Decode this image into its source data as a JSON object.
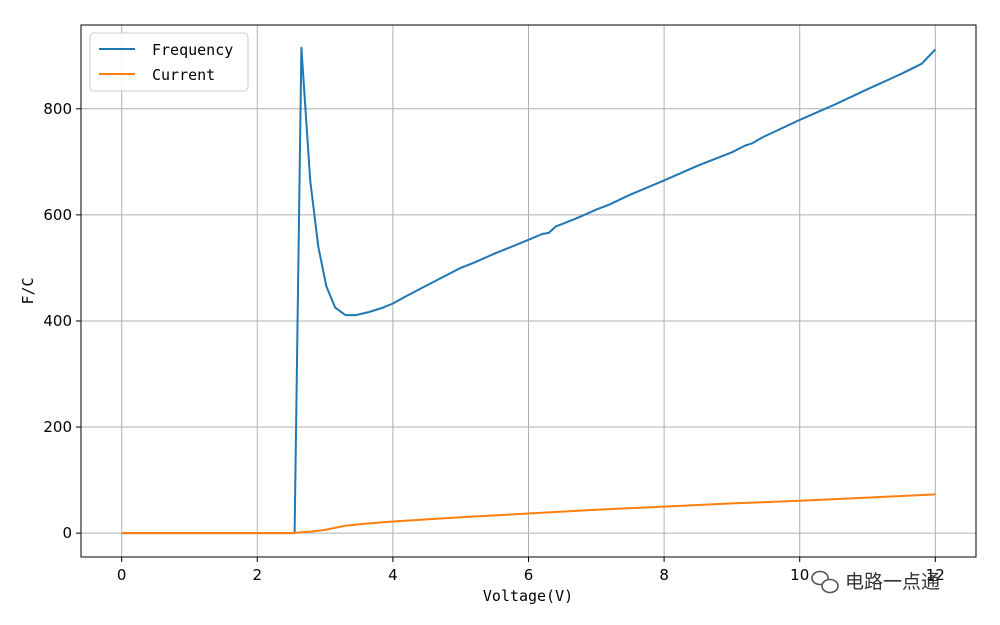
{
  "chart_data": {
    "type": "line",
    "title": "",
    "xlabel": "Voltage(V)",
    "ylabel": "F/C",
    "xlim": [
      -0.6,
      12.6
    ],
    "ylim": [
      -45,
      958
    ],
    "xticks": [
      0,
      2,
      4,
      6,
      8,
      10,
      12
    ],
    "yticks": [
      0,
      200,
      400,
      600,
      800
    ],
    "grid": true,
    "legend_position": "top-left",
    "series": [
      {
        "name": "Frequency",
        "color": "#1f77b4",
        "points": [
          [
            0,
            0
          ],
          [
            2.4,
            0
          ],
          [
            2.55,
            0
          ],
          [
            2.65,
            915
          ],
          [
            2.78,
            665
          ],
          [
            2.9,
            540
          ],
          [
            3.02,
            465
          ],
          [
            3.15,
            425
          ],
          [
            3.3,
            411
          ],
          [
            3.45,
            411
          ],
          [
            3.65,
            417
          ],
          [
            3.85,
            425
          ],
          [
            4.0,
            433
          ],
          [
            4.2,
            447
          ],
          [
            4.5,
            467
          ],
          [
            5.0,
            500
          ],
          [
            5.2,
            510
          ],
          [
            5.5,
            527
          ],
          [
            6.0,
            553
          ],
          [
            6.2,
            564
          ],
          [
            6.3,
            566
          ],
          [
            6.4,
            578
          ],
          [
            6.7,
            593
          ],
          [
            7.0,
            610
          ],
          [
            7.2,
            620
          ],
          [
            7.5,
            638
          ],
          [
            8.0,
            665
          ],
          [
            8.5,
            693
          ],
          [
            9.0,
            718
          ],
          [
            9.2,
            731
          ],
          [
            9.3,
            735
          ],
          [
            9.45,
            746
          ],
          [
            10.0,
            779
          ],
          [
            10.5,
            807
          ],
          [
            11.0,
            837
          ],
          [
            11.5,
            866
          ],
          [
            11.8,
            885
          ],
          [
            12.0,
            912
          ]
        ]
      },
      {
        "name": "Current",
        "color": "#ff7f0e",
        "points": [
          [
            0,
            0
          ],
          [
            2.5,
            0
          ],
          [
            2.8,
            3
          ],
          [
            3.0,
            6
          ],
          [
            3.3,
            14
          ],
          [
            3.6,
            18
          ],
          [
            4.0,
            22
          ],
          [
            5.0,
            30
          ],
          [
            6.0,
            37
          ],
          [
            7.0,
            44
          ],
          [
            8.0,
            50
          ],
          [
            9.0,
            56
          ],
          [
            10.0,
            61
          ],
          [
            11.0,
            67
          ],
          [
            12.0,
            73
          ]
        ]
      }
    ]
  },
  "watermark": {
    "text": "电路一点通",
    "icon": "wechat-icon"
  }
}
